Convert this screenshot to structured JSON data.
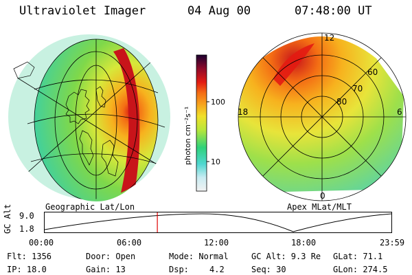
{
  "header": {
    "instrument": "Ultraviolet Imager",
    "date": "04 Aug 00",
    "time": "07:48:00 UT"
  },
  "left_panel": {
    "caption": "Geographic Lat/Lon"
  },
  "right_panel": {
    "caption": "Apex MLat/MLT",
    "mlt_labels": {
      "top": "12",
      "left": "18",
      "right": "6",
      "bottom": "0"
    },
    "lat_labels": [
      "60",
      "70",
      "80"
    ]
  },
  "colorbar": {
    "unit_label": "photon cm⁻²s⁻¹",
    "ticks": [
      "100",
      "10"
    ]
  },
  "timeline": {
    "ylabel": "GC Alt",
    "yticks": [
      "9.0",
      "1.8"
    ],
    "xticks": [
      "00:00",
      "06:00",
      "12:00",
      "18:00",
      "23:59"
    ],
    "marker_time_hours": 7.8
  },
  "footer": {
    "flt": "Flt: 1356",
    "ip": "IP: 18.0",
    "door": "Door: Open",
    "gain": "Gain: 13",
    "mode": "Mode: Normal",
    "dsp_label": "Dsp:",
    "dsp_value": "4.2",
    "gc_alt": "GC Alt: 9.3 Re",
    "seq": "Seq: 30",
    "glat": "GLat:  71.1",
    "glon": "GLon: 274.5"
  },
  "colors": {
    "scale": [
      "#f2f2f2",
      "#4fd7d0",
      "#2fd27a",
      "#b8e63a",
      "#f0e02a",
      "#f7a21e",
      "#f46e14",
      "#e31b12",
      "#8e0a2a",
      "#1c0030"
    ]
  }
}
